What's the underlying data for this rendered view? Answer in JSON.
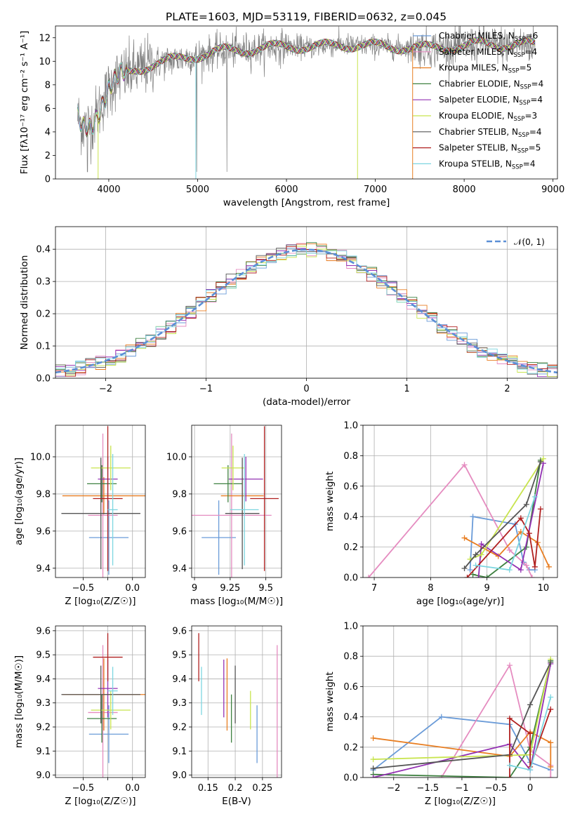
{
  "figure": {
    "title": "PLATE=1603, MJD=53119, FIBERID=0632, z=0.045"
  },
  "colors": {
    "Chabrier MILES": "#6a9bd8",
    "Salpeter MILES": "#e58cc0",
    "Kroupa MILES": "#e87e22",
    "Chabrier ELODIE": "#3e8040",
    "Salpeter ELODIE": "#9330b3",
    "Kroupa ELODIE": "#c8e44e",
    "Chabrier STELIB": "#555555",
    "Salpeter STELIB": "#b02020",
    "Kroupa STELIB": "#7dd6e0",
    "data": "#808080",
    "gauss": "#5b8fd6",
    "grid": "#b0b0b0"
  },
  "chart_data": [
    {
      "type": "line",
      "panel": "spectrum",
      "xlabel": "wavelength [Angstrom, rest frame]",
      "ylabel": "Flux [fλ10⁻¹⁷ erg cm⁻² s⁻¹ A⁻¹]",
      "xlim": [
        3400,
        9050
      ],
      "ylim": [
        0,
        13
      ],
      "xticks": [
        4000,
        5000,
        6000,
        7000,
        8000,
        9000
      ],
      "yticks": [
        0,
        2,
        4,
        6,
        8,
        10,
        12
      ],
      "grid": false,
      "legend_position": "upper right",
      "legend": [
        {
          "label": "Chabrier MILES, N",
          "sub": "SSP",
          "tail": "=6"
        },
        {
          "label": "Salpeter MILES, N",
          "sub": "SSP",
          "tail": "=4"
        },
        {
          "label": "Kroupa MILES, N",
          "sub": "SSP",
          "tail": "=5"
        },
        {
          "label": "Chabrier ELODIE, N",
          "sub": "SSP",
          "tail": "=4"
        },
        {
          "label": "Salpeter ELODIE, N",
          "sub": "SSP",
          "tail": "=4"
        },
        {
          "label": "Kroupa ELODIE, N",
          "sub": "SSP",
          "tail": "=3"
        },
        {
          "label": "Chabrier STELIB, N",
          "sub": "SSP",
          "tail": "=4"
        },
        {
          "label": "Salpeter STELIB, N",
          "sub": "SSP",
          "tail": "=5"
        },
        {
          "label": "Kroupa STELIB, N",
          "sub": "SSP",
          "tail": "=4"
        }
      ],
      "continuum_x": [
        3650,
        3700,
        3800,
        3900,
        4000,
        4100,
        4300,
        4500,
        4800,
        5000,
        5300,
        5600,
        6000,
        6300,
        6600,
        7000,
        7200,
        7400,
        7600,
        7800,
        8000,
        8200,
        8500,
        8800
      ],
      "continuum_y": [
        5.3,
        4.5,
        4.6,
        6.0,
        7.6,
        8.6,
        9.2,
        9.8,
        10.2,
        10.5,
        10.9,
        11.0,
        11.3,
        11.2,
        11.4,
        11.3,
        11.2,
        11.2,
        11.1,
        11.2,
        11.3,
        11.5,
        11.4,
        11.4
      ]
    },
    {
      "type": "line",
      "panel": "residual-histogram",
      "xlabel": "(data-model)/error",
      "ylabel": "Normed distribution",
      "xlim": [
        -2.5,
        2.5
      ],
      "ylim": [
        0,
        0.47
      ],
      "xticks": [
        -2,
        -1,
        0,
        1,
        2
      ],
      "yticks": [
        0.0,
        0.1,
        0.2,
        0.3,
        0.4
      ],
      "grid": true,
      "legend_position": "upper right",
      "legend_label": "𝒩(0, 1)"
    },
    {
      "type": "scatter",
      "panel": "age-vs-Z",
      "xlabel": "Z [log₁₀(Z/Z☉)]",
      "ylabel": "age  [log₁₀(age/yr)]",
      "xlim": [
        -0.78,
        0.13
      ],
      "ylim": [
        9.35,
        10.17
      ],
      "xticks": [
        -0.5,
        -0.25,
        0.0
      ],
      "xticklabels": [
        "−0.5",
        "",
        "0.0"
      ],
      "yticks": [
        9.4,
        9.6,
        9.8,
        10.0
      ],
      "grid": true
    },
    {
      "type": "scatter",
      "panel": "age-vs-mass",
      "xlabel": "mass [log₁₀(M/M☉)]",
      "xlim": [
        8.98,
        9.61
      ],
      "ylim": [
        9.35,
        10.17
      ],
      "xticks": [
        9.0,
        9.25,
        9.5
      ],
      "yticks": [
        9.4,
        9.6,
        9.8,
        10.0
      ],
      "grid": true
    },
    {
      "type": "line",
      "panel": "mass-weight-vs-age",
      "xlabel": "age  [log₁₀(age/yr)]",
      "ylabel": "mass weight",
      "xlim": [
        6.8,
        10.25
      ],
      "ylim": [
        0,
        1
      ],
      "xticks": [
        7,
        8,
        9,
        10
      ],
      "yticks": [
        0.0,
        0.2,
        0.4,
        0.6,
        0.8,
        1.0
      ],
      "grid": true
    },
    {
      "type": "scatter",
      "panel": "mass-vs-Z",
      "xlabel": "Z [log₁₀(Z/Z☉)]",
      "ylabel": "mass [log₁₀(M/M☉)]",
      "xlim": [
        -0.78,
        0.13
      ],
      "ylim": [
        8.99,
        9.62
      ],
      "xticks": [
        -0.5,
        -0.25,
        0.0
      ],
      "xticklabels": [
        "−0.5",
        "",
        "0.0"
      ],
      "yticks": [
        9.0,
        9.1,
        9.2,
        9.3,
        9.4,
        9.5,
        9.6
      ],
      "grid": true
    },
    {
      "type": "scatter",
      "panel": "mass-vs-EBV",
      "xlabel": "E(B-V)",
      "xlim": [
        0.12,
        0.285
      ],
      "ylim": [
        8.99,
        9.62
      ],
      "xticks": [
        0.15,
        0.2,
        0.25
      ],
      "yticks": [
        9.0,
        9.1,
        9.2,
        9.3,
        9.4,
        9.5,
        9.6
      ],
      "grid": true
    },
    {
      "type": "line",
      "panel": "mass-weight-vs-Z",
      "xlabel": "Z [log₁₀(Z/Z☉)]",
      "ylabel": "mass weight",
      "xlim": [
        -2.45,
        0.4
      ],
      "ylim": [
        0,
        1
      ],
      "xticks": [
        -2.0,
        -1.5,
        -1.0,
        -0.5,
        0.0
      ],
      "yticks": [
        0.0,
        0.2,
        0.4,
        0.6,
        0.8,
        1.0
      ],
      "grid": true
    },
    {
      "type": "scatter",
      "panel": "fit-summary",
      "models": [
        "Chabrier MILES",
        "Salpeter MILES",
        "Kroupa MILES",
        "Chabrier ELODIE",
        "Salpeter ELODIE",
        "Kroupa ELODIE",
        "Chabrier STELIB",
        "Salpeter STELIB",
        "Kroupa STELIB"
      ],
      "Z": [
        -0.24,
        -0.3,
        -0.29,
        -0.31,
        -0.25,
        -0.22,
        -0.32,
        -0.25,
        -0.2
      ],
      "Z_err": [
        0.2,
        0.15,
        0.42,
        0.15,
        0.1,
        0.2,
        0.4,
        0.15,
        0.05
      ],
      "age": [
        9.565,
        9.685,
        9.79,
        9.855,
        9.88,
        9.94,
        9.695,
        9.775,
        9.715
      ],
      "age_err": [
        0.2,
        0.44,
        0.1,
        0.1,
        0.12,
        0.12,
        0.3,
        0.39,
        0.3
      ],
      "mass": [
        9.17,
        9.26,
        9.335,
        9.235,
        9.36,
        9.27,
        9.335,
        9.49,
        9.35
      ],
      "mass_err": [
        0.12,
        0.28,
        0.15,
        0.1,
        0.12,
        0.08,
        0.12,
        0.1,
        0.1
      ],
      "ebv": [
        0.24,
        0.277,
        0.185,
        0.193,
        0.179,
        0.228,
        0.2,
        0.133,
        0.138
      ],
      "ebv_err": [
        0,
        0,
        0,
        0,
        0,
        0,
        0,
        0,
        0
      ]
    },
    {
      "type": "line",
      "panel": "mass-weight-series",
      "series": [
        {
          "key": "Chabrier MILES",
          "age": [
            8.7,
            8.75,
            9.5,
            9.65,
            9.75,
            9.85
          ],
          "Z": [
            -2.3,
            -1.3,
            -0.3,
            0.0,
            0.3,
            0.3
          ],
          "w": [
            0.05,
            0.4,
            0.35,
            0.1,
            0.05,
            0.05
          ]
        },
        {
          "key": "Salpeter MILES",
          "age": [
            6.9,
            8.6,
            9.4,
            9.7,
            9.8
          ],
          "Z": [
            -1.3,
            -0.3,
            0.0,
            0.3,
            0.3
          ],
          "w": [
            0.0,
            0.74,
            0.18,
            0.08,
            0.0
          ]
        },
        {
          "key": "Kroupa MILES",
          "age": [
            8.6,
            9.2,
            9.6,
            9.9,
            10.1
          ],
          "Z": [
            -2.3,
            -0.3,
            0.0,
            0.3,
            0.3
          ],
          "w": [
            0.26,
            0.14,
            0.3,
            0.23,
            0.07
          ]
        },
        {
          "key": "Chabrier ELODIE",
          "age": [
            8.75,
            9.0,
            9.7,
            9.95
          ],
          "Z": [
            -2.3,
            -0.3,
            0.0,
            0.3
          ],
          "w": [
            0.02,
            0.0,
            0.2,
            0.77
          ]
        },
        {
          "key": "Salpeter ELODIE",
          "age": [
            8.85,
            8.9,
            9.6,
            10.0
          ],
          "Z": [
            -2.3,
            -0.3,
            0.0,
            0.3
          ],
          "w": [
            0.0,
            0.22,
            0.05,
            0.75
          ]
        },
        {
          "key": "Kroupa ELODIE",
          "age": [
            8.7,
            8.9,
            10.0
          ],
          "Z": [
            -2.3,
            0.0,
            0.3
          ],
          "w": [
            0.12,
            0.15,
            0.78
          ]
        },
        {
          "key": "Chabrier STELIB",
          "age": [
            8.6,
            8.8,
            9.7,
            9.95
          ],
          "Z": [
            -2.3,
            -0.3,
            0.0,
            0.3
          ],
          "w": [
            0.06,
            0.15,
            0.48,
            0.76
          ]
        },
        {
          "key": "Salpeter STELIB",
          "age": [
            8.65,
            9.6,
            9.75,
            9.85,
            9.95
          ],
          "Z": [
            -0.3,
            -0.3,
            0.0,
            0.0,
            0.3
          ],
          "w": [
            0.0,
            0.39,
            0.29,
            0.07,
            0.45
          ]
        },
        {
          "key": "Kroupa STELIB",
          "age": [
            8.8,
            9.4,
            9.85
          ],
          "Z": [
            -0.3,
            0.0,
            0.3
          ],
          "w": [
            0.08,
            0.05,
            0.53
          ]
        }
      ]
    }
  ]
}
